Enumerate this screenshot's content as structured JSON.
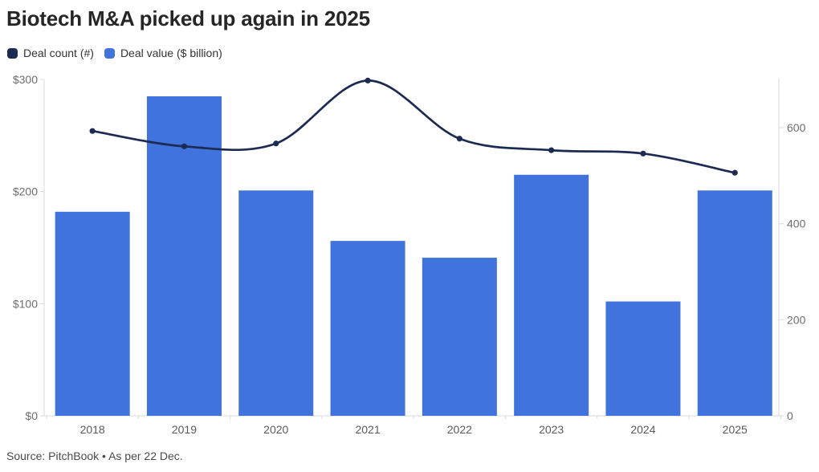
{
  "header": {
    "title": "Biotech M&A picked up again in 2025"
  },
  "legend": {
    "items": [
      {
        "label": "Deal count (#)",
        "color": "#1c2b52"
      },
      {
        "label": "Deal value ($ billion)",
        "color": "#4173dc"
      }
    ]
  },
  "source": "Source: PitchBook • As per 22 Dec.",
  "chart_data": {
    "type": "combo-bar-line",
    "categories": [
      "2018",
      "2019",
      "2020",
      "2021",
      "2022",
      "2023",
      "2024",
      "2025"
    ],
    "series": [
      {
        "name": "Deal count (#)",
        "type": "line",
        "axis": "right",
        "color": "#1c2b52",
        "values": [
          593,
          561,
          567,
          698,
          577,
          553,
          546,
          506
        ]
      },
      {
        "name": "Deal value ($ billion)",
        "type": "bar",
        "axis": "left",
        "color": "#4173dc",
        "values": [
          182,
          285,
          201,
          156,
          141,
          215,
          102,
          201
        ]
      }
    ],
    "axes": {
      "left": {
        "label": "Deal value ($ billion)",
        "tick_labels": [
          "$300",
          "$200",
          "$100",
          "$0"
        ],
        "tick_values": [
          300,
          200,
          100,
          0
        ],
        "range": [
          0,
          300
        ]
      },
      "right": {
        "label": "Deal count (#)",
        "tick_labels": [
          "600",
          "400",
          "200",
          "0"
        ],
        "tick_values": [
          600,
          400,
          200,
          0
        ],
        "range": [
          0,
          700
        ]
      }
    },
    "grid": "off",
    "legend_position": "top-left",
    "colors": {
      "axis_line": "#d8d8d8",
      "tick_text": "#6e6e6e",
      "year_text": "#5a5a5a"
    }
  }
}
